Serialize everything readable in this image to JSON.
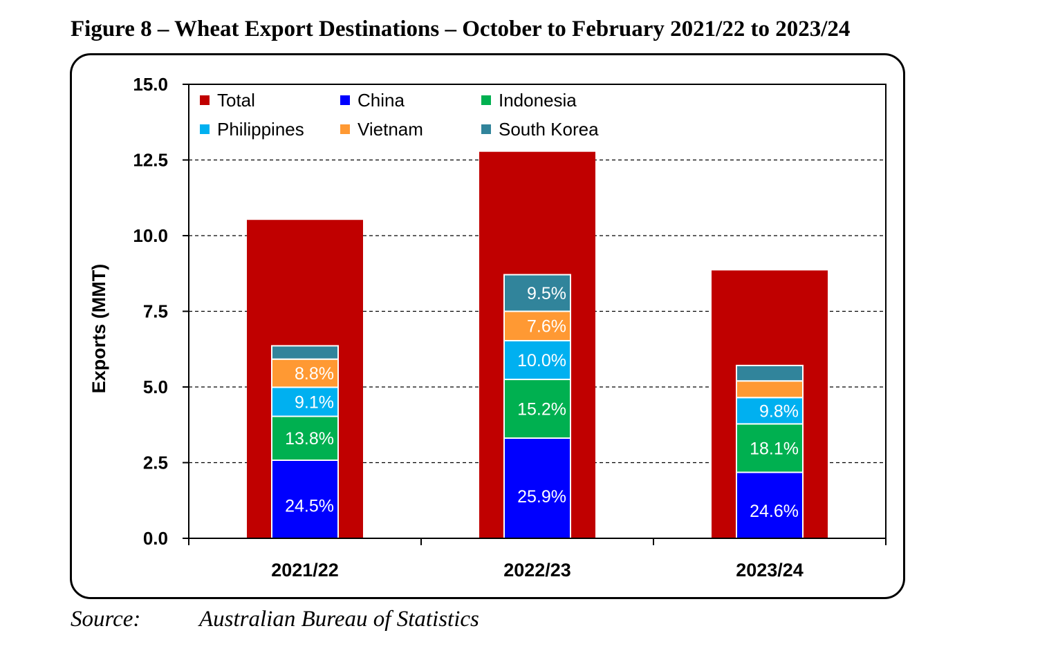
{
  "figure": {
    "title": "Figure 8 – Wheat Export Destinations – October to February 2021/22 to 2023/24",
    "source_label": "Source:",
    "source_text": "Australian Bureau of Statistics"
  },
  "chart_data": {
    "type": "bar",
    "stacked": true,
    "categories": [
      "2021/22",
      "2022/23",
      "2023/24"
    ],
    "ylabel": "Exports (MMT)",
    "xlabel": "",
    "ylim": [
      0,
      15
    ],
    "yticks": [
      0.0,
      2.5,
      5.0,
      7.5,
      10.0,
      12.5,
      15.0
    ],
    "ytick_labels": [
      "0.0",
      "2.5",
      "5.0",
      "7.5",
      "10.0",
      "12.5",
      "15.0"
    ],
    "grid": "horizontal-dashed",
    "legend": "top-left",
    "total_series": {
      "name": "Total",
      "color": "#C00000",
      "values": [
        10.52,
        12.77,
        8.85
      ]
    },
    "series": [
      {
        "name": "China",
        "color": "#0000FF",
        "values": [
          2.58,
          3.31,
          2.18
        ],
        "labels": [
          "24.5%",
          "25.9%",
          "24.6%"
        ]
      },
      {
        "name": "Indonesia",
        "color": "#00B050",
        "values": [
          1.45,
          1.94,
          1.6
        ],
        "labels": [
          "13.8%",
          "15.2%",
          "18.1%"
        ]
      },
      {
        "name": "Philippines",
        "color": "#00B0F0",
        "values": [
          0.96,
          1.28,
          0.87
        ],
        "labels": [
          "9.1%",
          "10.0%",
          "9.8%"
        ]
      },
      {
        "name": "Vietnam",
        "color": "#FF9933",
        "values": [
          0.93,
          0.97,
          0.55
        ],
        "labels": [
          "8.8%",
          "7.6%",
          ""
        ]
      },
      {
        "name": "South Korea",
        "color": "#31849B",
        "values": [
          0.44,
          1.21,
          0.51
        ],
        "labels": [
          "",
          "9.5%",
          ""
        ]
      }
    ]
  }
}
